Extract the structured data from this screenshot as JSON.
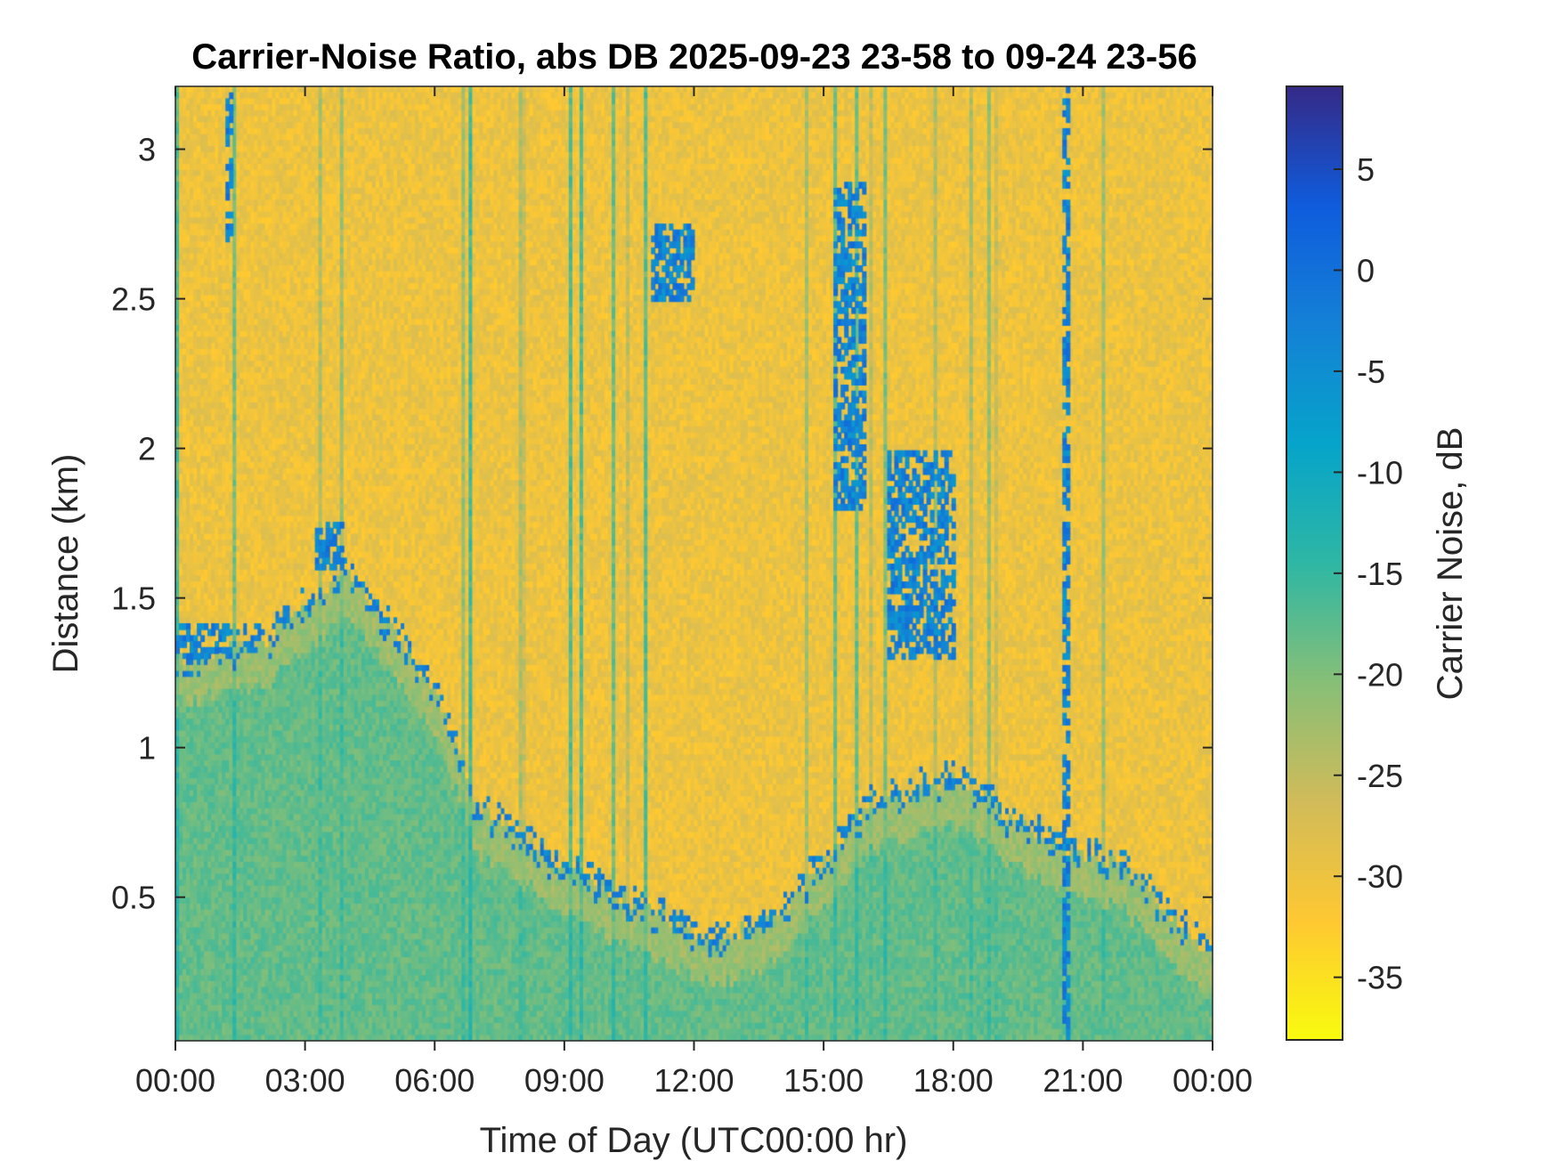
{
  "chart_data": {
    "type": "heatmap",
    "title": "Carrier-Noise Ratio, abs DB 2025-09-23 23-58 to 09-24 23-56",
    "xlabel": "Time of Day (UTC00:00 hr)",
    "ylabel": "Distance (km)",
    "xlim_hours": [
      0,
      24
    ],
    "ylim": [
      0.02,
      3.21
    ],
    "x_ticks": [
      "00:00",
      "03:00",
      "06:00",
      "09:00",
      "12:00",
      "15:00",
      "18:00",
      "21:00",
      "00:00"
    ],
    "y_ticks": [
      {
        "value": 0.5,
        "label": "0.5"
      },
      {
        "value": 1,
        "label": "1"
      },
      {
        "value": 1.5,
        "label": "1.5"
      },
      {
        "value": 2,
        "label": "2"
      },
      {
        "value": 2.5,
        "label": "2.5"
      },
      {
        "value": 3,
        "label": "3"
      }
    ],
    "colorbar": {
      "label": "Carrier Noise, dB",
      "range": [
        -38.1,
        9.1
      ],
      "ticks": [
        {
          "value": 5,
          "label": "5"
        },
        {
          "value": 0,
          "label": "0"
        },
        {
          "value": -5,
          "label": "-5"
        },
        {
          "value": -10,
          "label": "-10"
        },
        {
          "value": -15,
          "label": "-15"
        },
        {
          "value": -20,
          "label": "-20"
        },
        {
          "value": -25,
          "label": "-25"
        },
        {
          "value": -30,
          "label": "-30"
        },
        {
          "value": -35,
          "label": "-35"
        }
      ],
      "colormap": [
        "#352a87",
        "#0f5cdd",
        "#1481d6",
        "#06a4ca",
        "#2eb7a4",
        "#87bf77",
        "#d1bb59",
        "#fec832",
        "#f9fb0e"
      ]
    },
    "boundary_layer_top_km": [
      {
        "hour": 0,
        "km": 1.3
      },
      {
        "hour": 2,
        "km": 1.35
      },
      {
        "hour": 4,
        "km": 1.6
      },
      {
        "hour": 6,
        "km": 1.2
      },
      {
        "hour": 7,
        "km": 0.8
      },
      {
        "hour": 9,
        "km": 0.6
      },
      {
        "hour": 11,
        "km": 0.45
      },
      {
        "hour": 12.5,
        "km": 0.35
      },
      {
        "hour": 14,
        "km": 0.45
      },
      {
        "hour": 16,
        "km": 0.8
      },
      {
        "hour": 18,
        "km": 0.9
      },
      {
        "hour": 20,
        "km": 0.7
      },
      {
        "hour": 22,
        "km": 0.6
      },
      {
        "hour": 24,
        "km": 0.3
      }
    ],
    "typical_values_db": {
      "boundary_layer": -18,
      "free_atmosphere": -30,
      "cloud_returns": -3
    }
  }
}
